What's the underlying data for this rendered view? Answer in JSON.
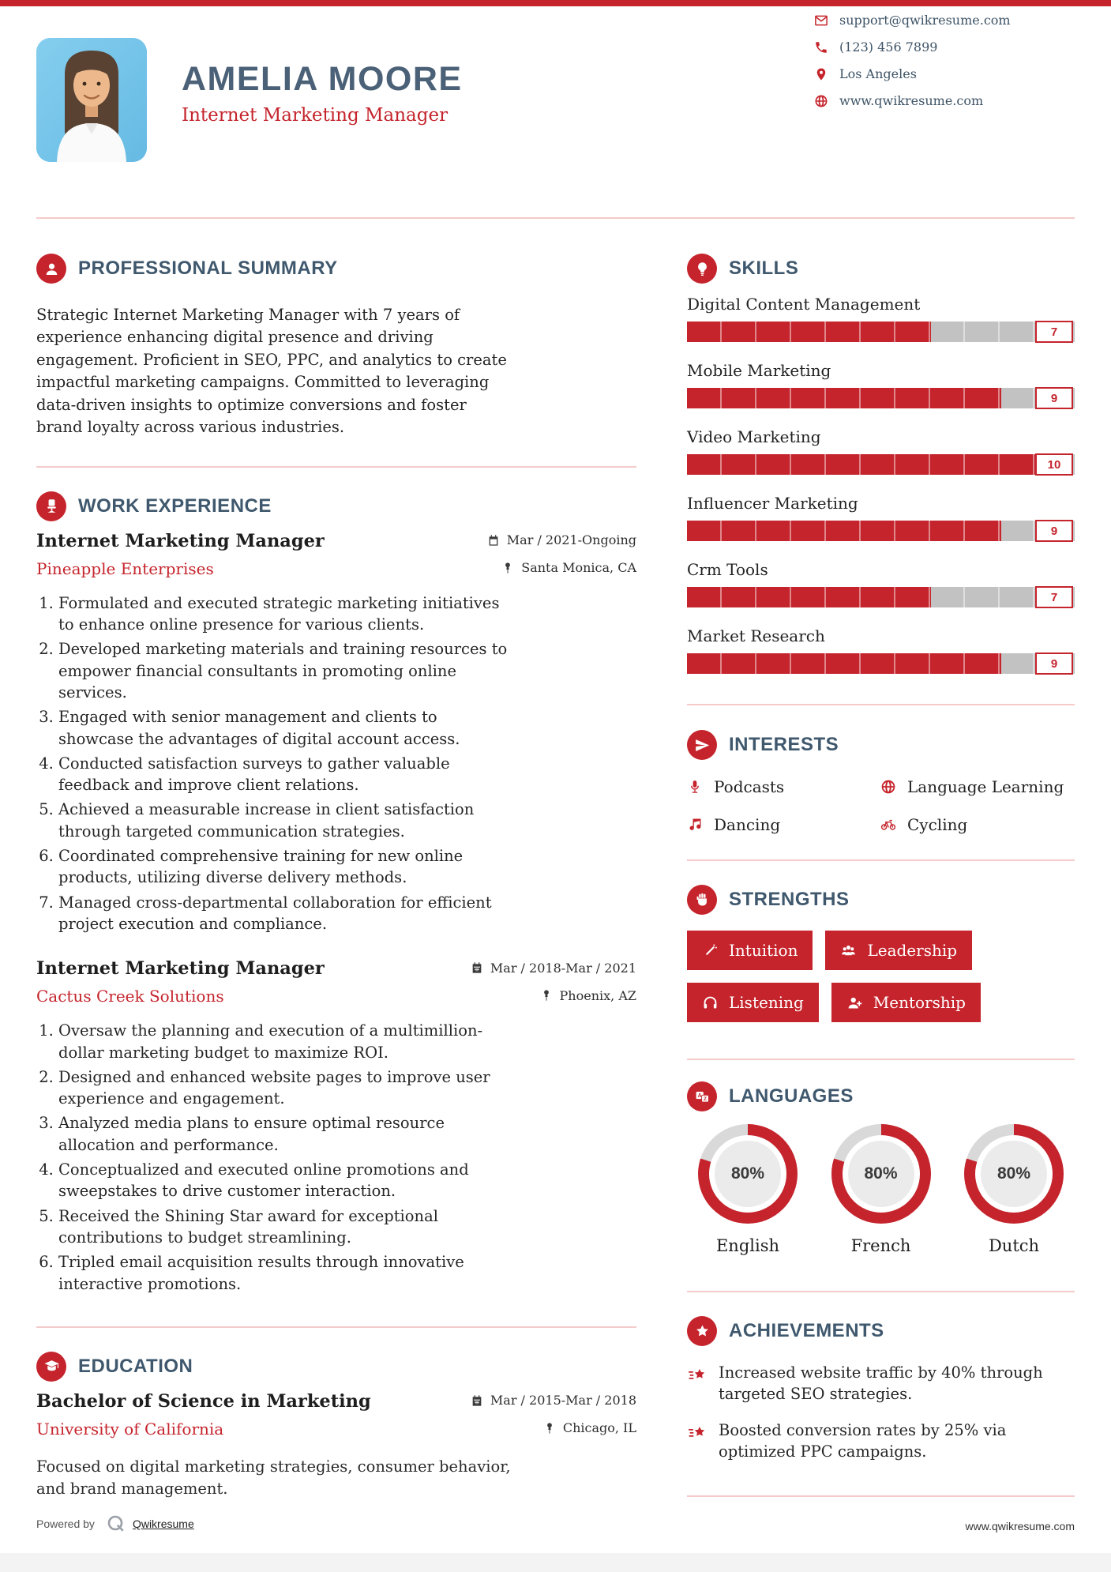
{
  "page": {
    "accent": "#c5242c",
    "heading_color": "#3f586d",
    "bar_gray": "#c2c2c2"
  },
  "header": {
    "name": "AMELIA MOORE",
    "title": "Internet Marketing Manager"
  },
  "contact": {
    "email": "support@qwikresume.com",
    "phone": "(123) 456 7899",
    "location": "Los Angeles",
    "website": "www.qwikresume.com"
  },
  "summary": {
    "heading": "PROFESSIONAL SUMMARY",
    "text": "Strategic Internet Marketing Manager with 7 years of experience enhancing digital presence and driving engagement. Proficient in SEO, PPC, and analytics to create impactful marketing campaigns. Committed to leveraging data-driven insights to optimize conversions and foster brand loyalty across various industries."
  },
  "work": {
    "heading": "WORK EXPERIENCE",
    "jobs": [
      {
        "title": "Internet Marketing Manager",
        "company": "Pineapple Enterprises",
        "dates": "Mar / 2021-Ongoing",
        "location": "Santa Monica, CA",
        "bullets": [
          "Formulated and executed strategic marketing initiatives to enhance online presence for various clients.",
          "Developed marketing materials and training resources to empower financial consultants in promoting online services.",
          "Engaged with senior management and clients to showcase the advantages of digital account access.",
          "Conducted satisfaction surveys to gather valuable feedback and improve client relations.",
          "Achieved a measurable increase in client satisfaction through targeted communication strategies.",
          "Coordinated comprehensive training for new online products, utilizing diverse delivery methods.",
          "Managed cross-departmental collaboration for efficient project execution and compliance."
        ]
      },
      {
        "title": "Internet Marketing Manager",
        "company": "Cactus Creek Solutions",
        "dates": "Mar / 2018-Mar / 2021",
        "location": "Phoenix, AZ",
        "bullets": [
          "Oversaw the planning and execution of a multimillion-dollar marketing budget to maximize ROI.",
          "Designed and enhanced website pages to improve user experience and engagement.",
          "Analyzed media plans to ensure optimal resource allocation and performance.",
          "Conceptualized and executed online promotions and sweepstakes to drive customer interaction.",
          "Received the Shining Star award for exceptional contributions to budget streamlining.",
          "Tripled email acquisition results through innovative interactive promotions."
        ]
      }
    ]
  },
  "education": {
    "heading": "EDUCATION",
    "degree": "Bachelor of Science in Marketing",
    "school": "University of California",
    "dates": "Mar / 2015-Mar / 2018",
    "location": "Chicago, IL",
    "description": "Focused on digital marketing strategies, consumer behavior, and brand management."
  },
  "skills": {
    "heading": "SKILLS",
    "max": 10,
    "items": [
      {
        "name": "Digital Content Management",
        "score": 7
      },
      {
        "name": "Mobile Marketing",
        "score": 9
      },
      {
        "name": "Video Marketing",
        "score": 10
      },
      {
        "name": "Influencer Marketing",
        "score": 9
      },
      {
        "name": "Crm Tools",
        "score": 7
      },
      {
        "name": "Market Research",
        "score": 9
      }
    ]
  },
  "interests": {
    "heading": "INTERESTS",
    "items": [
      {
        "icon": "microphone-icon",
        "label": "Podcasts"
      },
      {
        "icon": "globe-icon",
        "label": "Language Learning"
      },
      {
        "icon": "music-note-icon",
        "label": "Dancing"
      },
      {
        "icon": "bicycle-icon",
        "label": "Cycling"
      }
    ]
  },
  "strengths": {
    "heading": "STRENGTHS",
    "items": [
      {
        "icon": "wand-icon",
        "label": "Intuition"
      },
      {
        "icon": "users-icon",
        "label": "Leadership"
      },
      {
        "icon": "headphones-icon",
        "label": "Listening"
      },
      {
        "icon": "person-plus-icon",
        "label": "Mentorship"
      }
    ]
  },
  "languages": {
    "heading": "LANGUAGES",
    "items": [
      {
        "name": "English",
        "percent": 80,
        "label": "80%"
      },
      {
        "name": "French",
        "percent": 80,
        "label": "80%"
      },
      {
        "name": "Dutch",
        "percent": 80,
        "label": "80%"
      }
    ]
  },
  "achievements": {
    "heading": "ACHIEVEMENTS",
    "items": [
      "Increased website traffic by 40% through targeted SEO strategies.",
      "Boosted conversion rates by 25% via optimized PPC campaigns."
    ]
  },
  "footer": {
    "powered_by": "Powered by",
    "brand": "Qwikresume",
    "website": "www.qwikresume.com"
  }
}
